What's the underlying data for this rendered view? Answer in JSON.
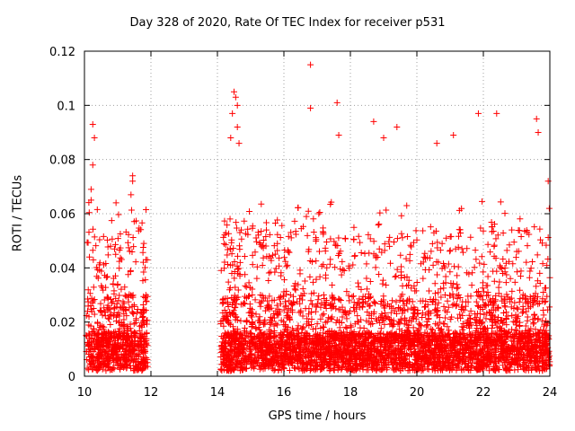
{
  "chart_data": {
    "type": "scatter",
    "title": "Day 328 of 2020, Rate Of TEC Index for receiver p531",
    "xlabel": "GPS time / hours",
    "ylabel": "ROTI / TECUs",
    "xlim": [
      10,
      24
    ],
    "ylim": [
      0,
      0.12
    ],
    "x_ticks": [
      10,
      12,
      14,
      16,
      18,
      20,
      22,
      24
    ],
    "x_tick_labels": [
      "10",
      "12",
      "14",
      "16",
      "18",
      "20",
      "22",
      "24"
    ],
    "y_ticks": [
      0,
      0.02,
      0.04,
      0.06,
      0.08,
      0.1,
      0.12
    ],
    "y_tick_labels": [
      "0",
      "0.02",
      "0.04",
      "0.06",
      "0.08",
      "0.1",
      "0.12"
    ],
    "grid": true,
    "marker": "+",
    "color": "#ff0000",
    "segments": [
      {
        "start": 10.05,
        "end": 11.9,
        "note": "data present"
      },
      {
        "start": 14.1,
        "end": 24.0,
        "note": "data present"
      }
    ],
    "notable_points": [
      {
        "x": 10.25,
        "y": 0.093
      },
      {
        "x": 10.3,
        "y": 0.088
      },
      {
        "x": 10.25,
        "y": 0.078
      },
      {
        "x": 10.2,
        "y": 0.069
      },
      {
        "x": 10.2,
        "y": 0.065
      },
      {
        "x": 10.15,
        "y": 0.044
      },
      {
        "x": 11.45,
        "y": 0.074
      },
      {
        "x": 11.45,
        "y": 0.072
      },
      {
        "x": 11.4,
        "y": 0.067
      },
      {
        "x": 10.95,
        "y": 0.064
      },
      {
        "x": 11.85,
        "y": 0.043
      },
      {
        "x": 14.5,
        "y": 0.105
      },
      {
        "x": 14.55,
        "y": 0.103
      },
      {
        "x": 14.6,
        "y": 0.1
      },
      {
        "x": 14.45,
        "y": 0.097
      },
      {
        "x": 14.6,
        "y": 0.092
      },
      {
        "x": 14.4,
        "y": 0.088
      },
      {
        "x": 14.65,
        "y": 0.086
      },
      {
        "x": 16.8,
        "y": 0.115
      },
      {
        "x": 16.8,
        "y": 0.099
      },
      {
        "x": 17.6,
        "y": 0.101
      },
      {
        "x": 17.65,
        "y": 0.089
      },
      {
        "x": 18.7,
        "y": 0.094
      },
      {
        "x": 19.4,
        "y": 0.092
      },
      {
        "x": 19.0,
        "y": 0.088
      },
      {
        "x": 20.6,
        "y": 0.086
      },
      {
        "x": 21.1,
        "y": 0.089
      },
      {
        "x": 21.85,
        "y": 0.097
      },
      {
        "x": 22.4,
        "y": 0.097
      },
      {
        "x": 23.6,
        "y": 0.095
      },
      {
        "x": 23.65,
        "y": 0.09
      },
      {
        "x": 23.95,
        "y": 0.072
      }
    ]
  }
}
